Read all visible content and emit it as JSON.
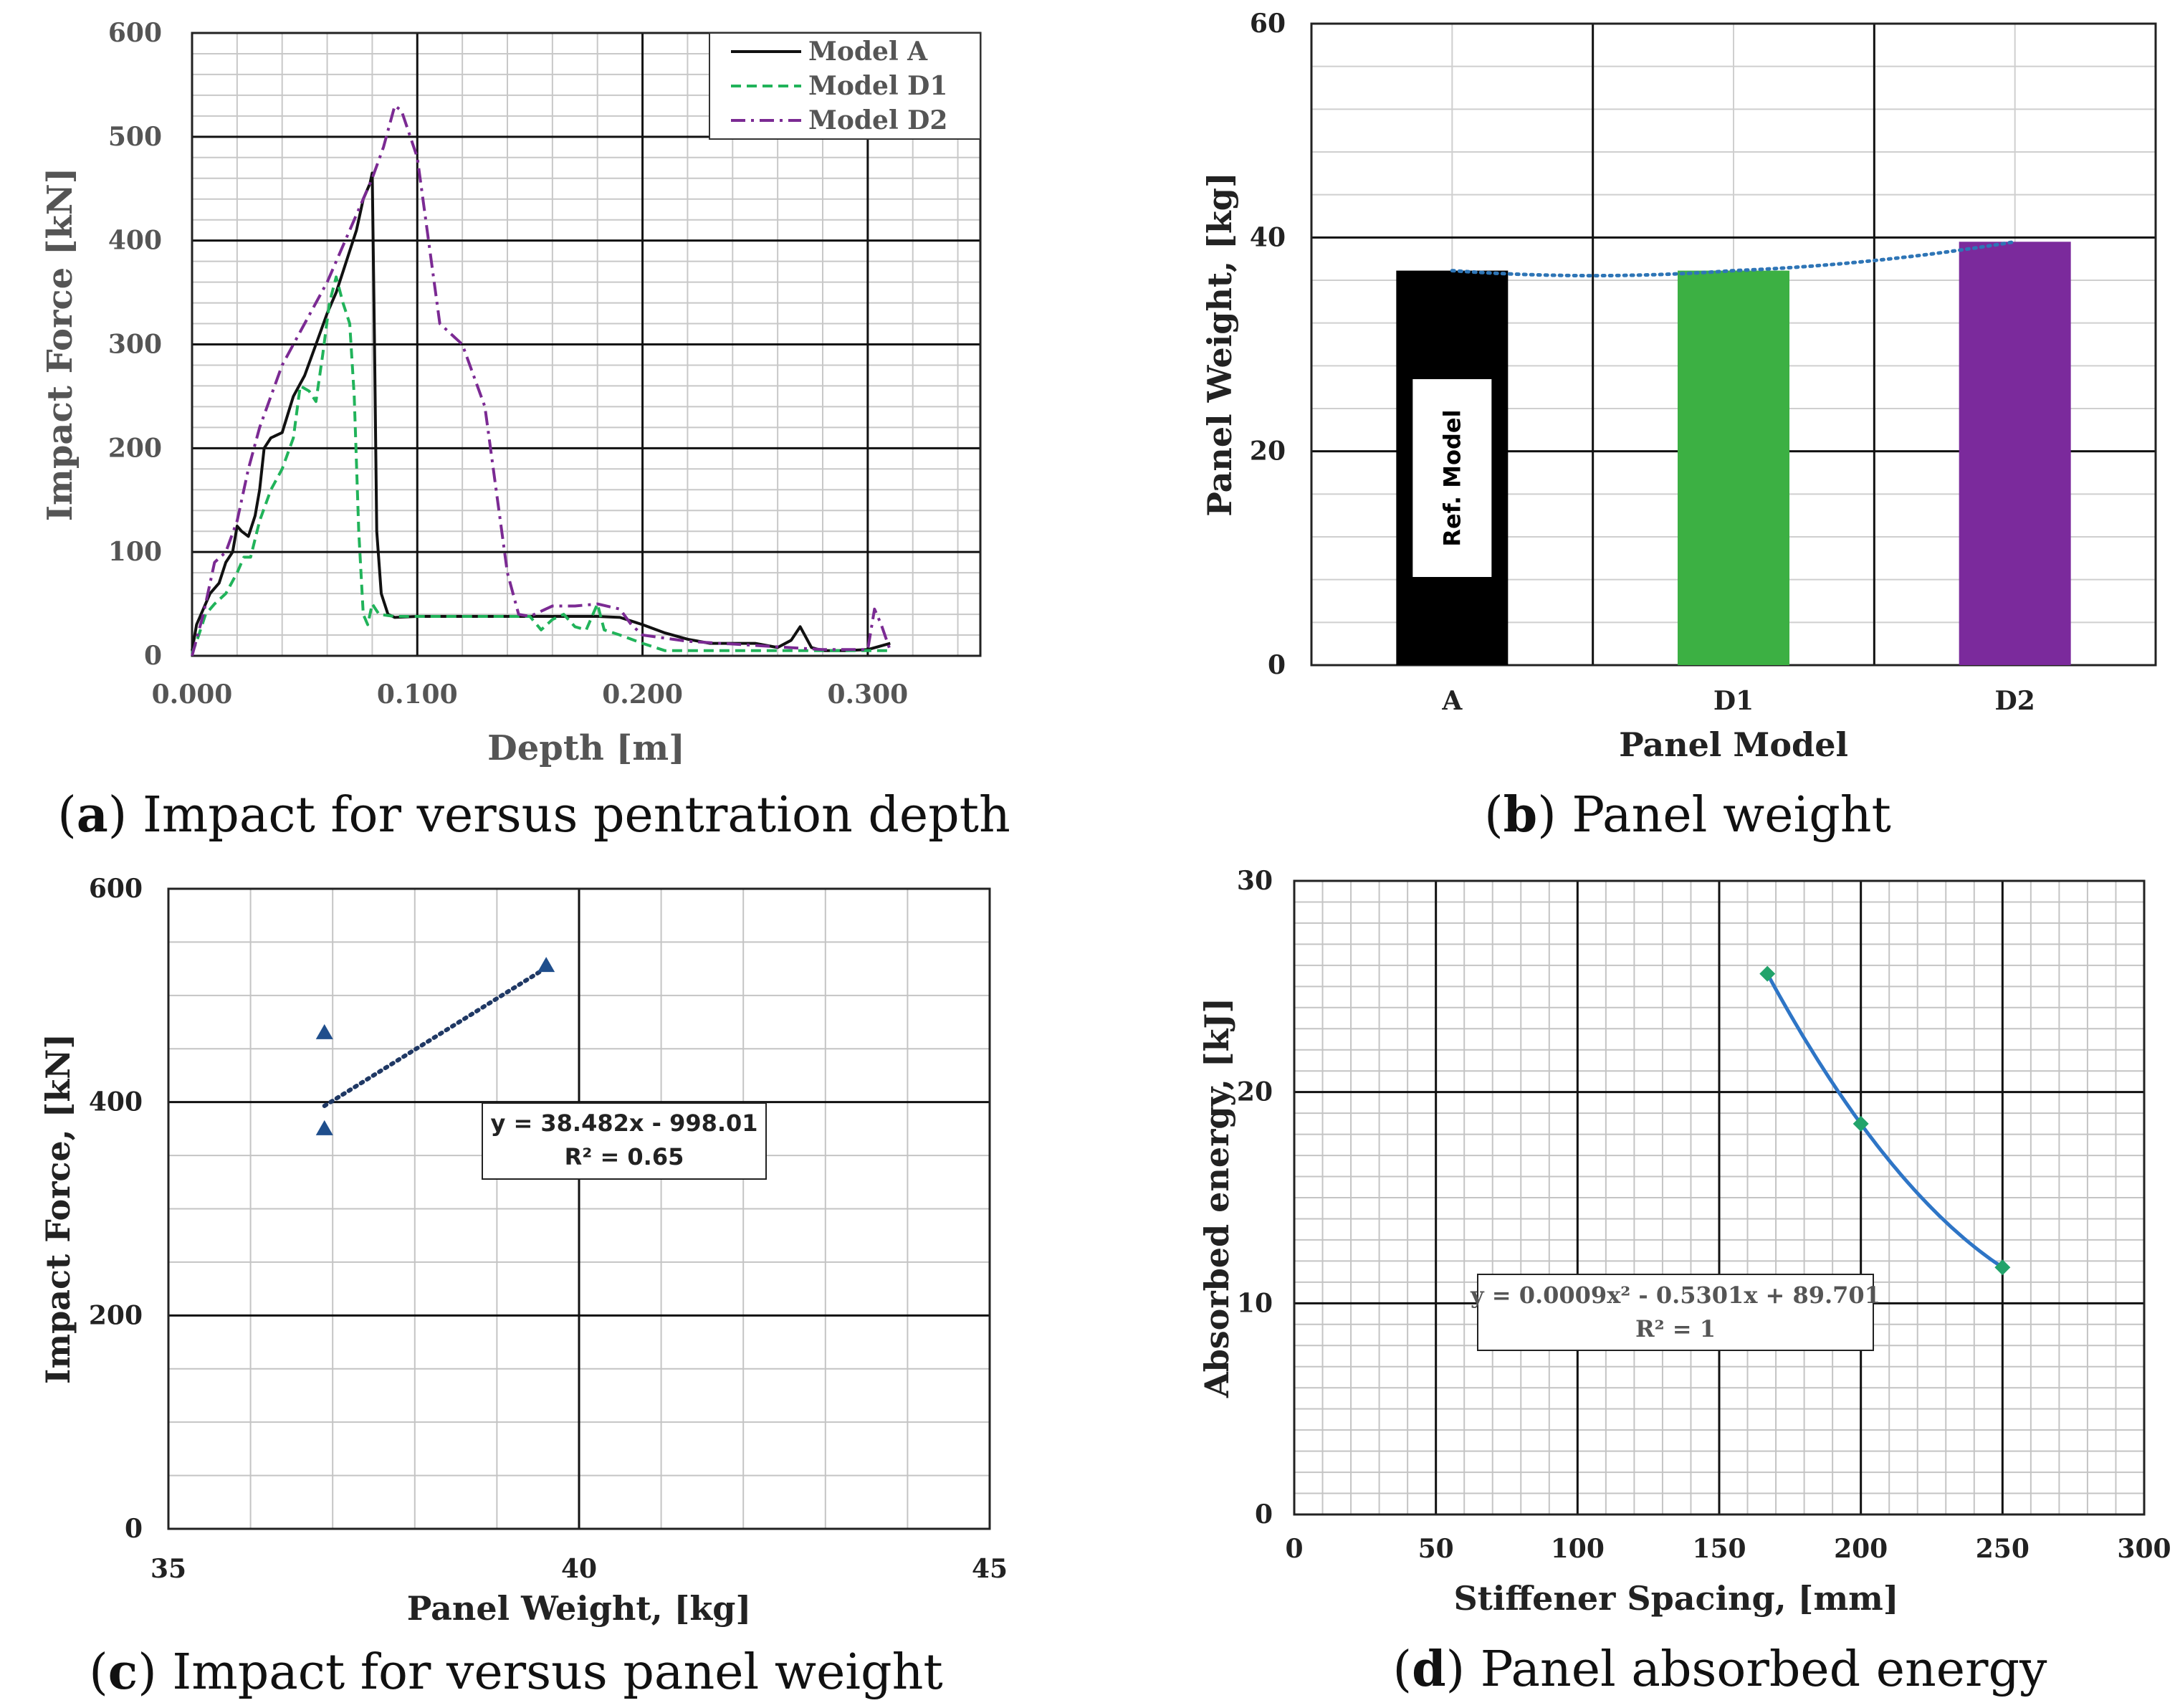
{
  "chart_data": [
    {
      "id": "a",
      "type": "line",
      "caption_letter": "a",
      "caption_text": "Impact for versus pentration depth",
      "xlabel": "Depth [m]",
      "ylabel": "Impact Force [kN]",
      "xlim": [
        0,
        0.35
      ],
      "ylim": [
        0,
        600
      ],
      "xticks": [
        {
          "value": 0,
          "label": "0.000"
        },
        {
          "value": 0.1,
          "label": "0.100"
        },
        {
          "value": 0.2,
          "label": "0.200"
        },
        {
          "value": 0.3,
          "label": "0.300"
        }
      ],
      "yticks": [
        {
          "value": 0,
          "label": "0"
        },
        {
          "value": 100,
          "label": "100"
        },
        {
          "value": 200,
          "label": "200"
        },
        {
          "value": 300,
          "label": "300"
        },
        {
          "value": 400,
          "label": "400"
        },
        {
          "value": 500,
          "label": "500"
        },
        {
          "value": 600,
          "label": "600"
        }
      ],
      "legend_position": "top-right",
      "series": [
        {
          "name": "Model A",
          "color": "#111111",
          "style": "solid",
          "points": [
            [
              0,
              5
            ],
            [
              0.002,
              30
            ],
            [
              0.005,
              45
            ],
            [
              0.008,
              60
            ],
            [
              0.012,
              70
            ],
            [
              0.015,
              90
            ],
            [
              0.018,
              100
            ],
            [
              0.02,
              125
            ],
            [
              0.022,
              120
            ],
            [
              0.025,
              115
            ],
            [
              0.028,
              135
            ],
            [
              0.03,
              160
            ],
            [
              0.032,
              200
            ],
            [
              0.035,
              210
            ],
            [
              0.04,
              215
            ],
            [
              0.045,
              250
            ],
            [
              0.05,
              270
            ],
            [
              0.055,
              300
            ],
            [
              0.06,
              330
            ],
            [
              0.064,
              350
            ],
            [
              0.067,
              370
            ],
            [
              0.07,
              390
            ],
            [
              0.073,
              410
            ],
            [
              0.076,
              440
            ],
            [
              0.079,
              455
            ],
            [
              0.08,
              465
            ],
            [
              0.081,
              300
            ],
            [
              0.082,
              120
            ],
            [
              0.084,
              60
            ],
            [
              0.087,
              40
            ],
            [
              0.09,
              37
            ],
            [
              0.1,
              38
            ],
            [
              0.15,
              38
            ],
            [
              0.18,
              38
            ],
            [
              0.19,
              37
            ],
            [
              0.2,
              30
            ],
            [
              0.21,
              22
            ],
            [
              0.22,
              16
            ],
            [
              0.23,
              12
            ],
            [
              0.25,
              12
            ],
            [
              0.26,
              8
            ],
            [
              0.266,
              15
            ],
            [
              0.27,
              28
            ],
            [
              0.275,
              8
            ],
            [
              0.28,
              5
            ],
            [
              0.29,
              5
            ],
            [
              0.3,
              6
            ],
            [
              0.31,
              12
            ]
          ]
        },
        {
          "name": "Model D1",
          "color": "#21b35a",
          "style": "dashed",
          "points": [
            [
              0,
              2
            ],
            [
              0.003,
              20
            ],
            [
              0.006,
              40
            ],
            [
              0.01,
              50
            ],
            [
              0.015,
              60
            ],
            [
              0.02,
              80
            ],
            [
              0.023,
              95
            ],
            [
              0.026,
              95
            ],
            [
              0.03,
              130
            ],
            [
              0.035,
              160
            ],
            [
              0.04,
              180
            ],
            [
              0.045,
              210
            ],
            [
              0.048,
              260
            ],
            [
              0.052,
              255
            ],
            [
              0.055,
              245
            ],
            [
              0.058,
              290
            ],
            [
              0.061,
              340
            ],
            [
              0.064,
              365
            ],
            [
              0.067,
              340
            ],
            [
              0.07,
              320
            ],
            [
              0.072,
              250
            ],
            [
              0.074,
              120
            ],
            [
              0.076,
              40
            ],
            [
              0.078,
              30
            ],
            [
              0.08,
              50
            ],
            [
              0.083,
              40
            ],
            [
              0.09,
              38
            ],
            [
              0.1,
              38
            ],
            [
              0.15,
              38
            ],
            [
              0.155,
              25
            ],
            [
              0.16,
              35
            ],
            [
              0.165,
              40
            ],
            [
              0.17,
              28
            ],
            [
              0.175,
              25
            ],
            [
              0.178,
              40
            ],
            [
              0.18,
              50
            ],
            [
              0.183,
              25
            ],
            [
              0.19,
              20
            ],
            [
              0.2,
              12
            ],
            [
              0.21,
              5
            ],
            [
              0.25,
              5
            ],
            [
              0.3,
              5
            ],
            [
              0.31,
              5
            ]
          ]
        },
        {
          "name": "Model D2",
          "color": "#7b2a93",
          "style": "dashdot",
          "points": [
            [
              0,
              0
            ],
            [
              0.005,
              40
            ],
            [
              0.01,
              90
            ],
            [
              0.015,
              100
            ],
            [
              0.02,
              130
            ],
            [
              0.025,
              180
            ],
            [
              0.03,
              220
            ],
            [
              0.04,
              280
            ],
            [
              0.05,
              320
            ],
            [
              0.06,
              360
            ],
            [
              0.07,
              410
            ],
            [
              0.08,
              460
            ],
            [
              0.085,
              490
            ],
            [
              0.09,
              530
            ],
            [
              0.093,
              525
            ],
            [
              0.1,
              480
            ],
            [
              0.105,
              400
            ],
            [
              0.11,
              320
            ],
            [
              0.12,
              300
            ],
            [
              0.13,
              240
            ],
            [
              0.135,
              160
            ],
            [
              0.14,
              80
            ],
            [
              0.145,
              40
            ],
            [
              0.15,
              38
            ],
            [
              0.16,
              48
            ],
            [
              0.17,
              48
            ],
            [
              0.18,
              50
            ],
            [
              0.19,
              45
            ],
            [
              0.195,
              30
            ],
            [
              0.2,
              20
            ],
            [
              0.22,
              14
            ],
            [
              0.25,
              10
            ],
            [
              0.28,
              6
            ],
            [
              0.3,
              6
            ],
            [
              0.303,
              45
            ],
            [
              0.306,
              30
            ],
            [
              0.31,
              5
            ]
          ]
        }
      ]
    },
    {
      "id": "b",
      "type": "bar",
      "caption_letter": "b",
      "caption_text": "Panel weight",
      "xlabel": "Panel Model",
      "ylabel": "Panel Weight, [kg]",
      "ylim": [
        0,
        60
      ],
      "yticks": [
        {
          "value": 0,
          "label": "0"
        },
        {
          "value": 20,
          "label": "20"
        },
        {
          "value": 40,
          "label": "40"
        },
        {
          "value": 60,
          "label": "60"
        }
      ],
      "categories": [
        "A",
        "D1",
        "D2"
      ],
      "values": [
        36.9,
        36.9,
        39.6
      ],
      "colors": [
        "#000000",
        "#3cb043",
        "#7b2a9c"
      ],
      "trendline_color": "#2e75b6",
      "annotation": "Ref. Model"
    },
    {
      "id": "c",
      "type": "scatter",
      "caption_letter": "c",
      "caption_text": "Impact for versus panel weight",
      "xlabel": "Panel Weight, [kg]",
      "ylabel": "Impact Force, [kN]",
      "xlim": [
        35,
        45
      ],
      "ylim": [
        0,
        600
      ],
      "xticks": [
        {
          "value": 35,
          "label": "35"
        },
        {
          "value": 40,
          "label": "40"
        },
        {
          "value": 45,
          "label": "45"
        }
      ],
      "yticks": [
        {
          "value": 0,
          "label": "0"
        },
        {
          "value": 200,
          "label": "200"
        },
        {
          "value": 400,
          "label": "400"
        },
        {
          "value": 600,
          "label": "600"
        }
      ],
      "points": [
        [
          36.9,
          465
        ],
        [
          36.9,
          375
        ],
        [
          39.6,
          528
        ]
      ],
      "marker_color": "#1f4e8c",
      "trendline": {
        "slope": 38.482,
        "intercept": -998.01,
        "x_range": [
          36.9,
          39.6
        ],
        "color": "#1f3864"
      },
      "equation": "y = 38.482x - 998.01",
      "r2": "R² = 0.65"
    },
    {
      "id": "d",
      "type": "scatter",
      "caption_letter": "d",
      "caption_text": "Panel absorbed energy",
      "xlabel": "Stiffener Spacing, [mm]",
      "ylabel": "Absorbed energy, [kJ]",
      "xlim": [
        0,
        300
      ],
      "ylim": [
        0,
        30
      ],
      "xticks": [
        {
          "value": 0,
          "label": "0"
        },
        {
          "value": 50,
          "label": "50"
        },
        {
          "value": 100,
          "label": "100"
        },
        {
          "value": 150,
          "label": "150"
        },
        {
          "value": 200,
          "label": "200"
        },
        {
          "value": 250,
          "label": "250"
        },
        {
          "value": 300,
          "label": "300"
        }
      ],
      "yticks": [
        {
          "value": 0,
          "label": "0"
        },
        {
          "value": 10,
          "label": "10"
        },
        {
          "value": 20,
          "label": "20"
        },
        {
          "value": 30,
          "label": "30"
        }
      ],
      "points": [
        [
          167,
          25.6
        ],
        [
          200,
          18.5
        ],
        [
          250,
          11.7
        ]
      ],
      "marker_color": "#22a36a",
      "trendline": {
        "a": 0.0009,
        "b": -0.5301,
        "c": 89.701,
        "x_range": [
          167,
          250
        ],
        "color": "#2e75c6"
      },
      "equation": "y = 0.0009x² - 0.5301x + 89.701",
      "r2": "R² = 1"
    }
  ]
}
